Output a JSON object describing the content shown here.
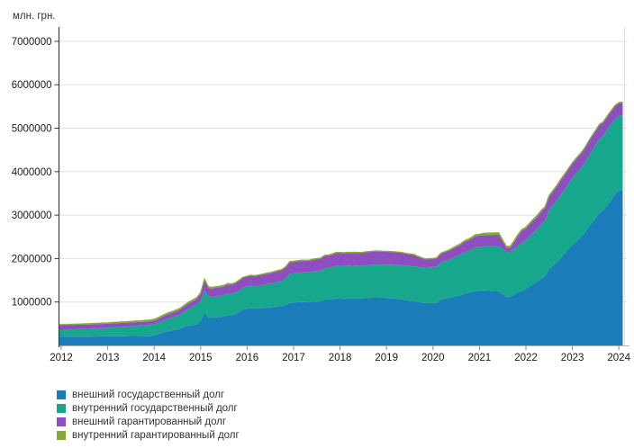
{
  "unit_label": "млн. грн.",
  "colors": {
    "ext_state": "#1b7cba",
    "int_state": "#17a78d",
    "ext_guaranteed": "#8f4ec0",
    "int_guaranteed": "#84ab35",
    "grid": "#e2e2e2",
    "y_axis": "#3c3c3c",
    "x_axis": "#b4b4b4",
    "tick_text": "#1c1c1c",
    "legend_text": "#333333"
  },
  "legend": {
    "items": [
      {
        "label": "внешний государственный долг",
        "color_key": "ext_state"
      },
      {
        "label": "внутренний государственный долг",
        "color_key": "int_state"
      },
      {
        "label": "внешний гарантированный долг",
        "color_key": "ext_guaranteed"
      },
      {
        "label": "внутренний гарантированный долг",
        "color_key": "int_guaranteed"
      }
    ]
  },
  "chart_data": {
    "type": "area",
    "stacked": true,
    "title": "",
    "ylabel": "млн. грн.",
    "grid": "horizontal",
    "legend_position": "bottom-left",
    "ylim": [
      0,
      7400000
    ],
    "y_ticks": [
      1000000,
      2000000,
      3000000,
      4000000,
      5000000,
      6000000,
      7000000
    ],
    "x_ticks": [
      "2012",
      "2013",
      "2014",
      "2015",
      "2016",
      "2017",
      "2018",
      "2019",
      "2020",
      "2021",
      "2022",
      "2023",
      "2024"
    ],
    "x_start_year": 2012,
    "points_per_year": 12,
    "series": [
      {
        "name": "внешний государственный долг",
        "color_key": "ext_state",
        "values": [
          197500,
          198000,
          198800,
          199500,
          200300,
          201000,
          202000,
          203000,
          204000,
          205500,
          207000,
          208926,
          209800,
          210800,
          211900,
          213000,
          214100,
          215200,
          216400,
          217600,
          218800,
          220100,
          221600,
          223260,
          235000,
          262000,
          292000,
          318000,
          338000,
          352000,
          368000,
          398000,
          438000,
          455000,
          470000,
          486027,
          560000,
          763000,
          642000,
          636000,
          648000,
          655000,
          668000,
          700000,
          692000,
          718000,
          768000,
          826270,
          842000,
          858000,
          846000,
          854000,
          863000,
          869000,
          874000,
          888000,
          898000,
          904000,
          933000,
          980186,
          986000,
          994000,
          999000,
          995000,
          991000,
          1004000,
          1009000,
          1014000,
          1058000,
          1054000,
          1064000,
          1080310,
          1076000,
          1071000,
          1079000,
          1077000,
          1084000,
          1081000,
          1087000,
          1099000,
          1104000,
          1109000,
          1104000,
          1099365,
          1094000,
          1085000,
          1079000,
          1069000,
          1059000,
          1040000,
          1029000,
          1019000,
          1009000,
          989000,
          966000,
          974962,
          971000,
          984000,
          1058000,
          1079000,
          1089000,
          1109000,
          1129000,
          1149000,
          1189000,
          1209000,
          1229000,
          1258560,
          1261000,
          1269000,
          1264000,
          1259000,
          1254000,
          1249000,
          1180000,
          1110000,
          1120000,
          1180000,
          1225000,
          1251400,
          1300000,
          1370000,
          1420000,
          1470000,
          1540000,
          1590000,
          1760000,
          1840000,
          1915000,
          2010000,
          2110000,
          2236600,
          2300000,
          2390000,
          2475000,
          2570000,
          2700000,
          2820000,
          2930000,
          3050000,
          3110000,
          3230000,
          3340000,
          3492000,
          3550000,
          3570000
        ]
      },
      {
        "name": "внутренний государственный долг",
        "color_key": "int_state",
        "values": [
          164000,
          166500,
          169000,
          171500,
          174000,
          176500,
          178500,
          180500,
          182500,
          185000,
          187600,
          190299,
          195500,
          200500,
          205500,
          210500,
          215500,
          220500,
          226200,
          231800,
          237500,
          243700,
          250200,
          256960,
          258500,
          261000,
          266000,
          277000,
          289000,
          301000,
          315000,
          333000,
          354000,
          398000,
          428000,
          461004,
          470000,
          500000,
          484000,
          481000,
          484000,
          487000,
          491000,
          494000,
          497000,
          500000,
          503500,
          508001,
          510500,
          512500,
          515500,
          521000,
          529000,
          540000,
          548000,
          556000,
          566000,
          580000,
          612000,
          670646,
          673000,
          676500,
          680500,
          685000,
          690000,
          699500,
          705000,
          711500,
          720500,
          728500,
          740000,
          753399,
          755500,
          756500,
          758000,
          756000,
          754000,
          752000,
          750500,
          748500,
          750000,
          752000,
          756500,
          761090,
          765500,
          770500,
          776000,
          780500,
          785500,
          790500,
          795500,
          800500,
          806000,
          812000,
          818500,
          829482,
          832500,
          836500,
          849000,
          859500,
          874500,
          899000,
          919500,
          934500,
          949500,
          961500,
          979500,
          1000576,
          1004000,
          1011000,
          1019000,
          1026000,
          1033000,
          1039000,
          1035000,
          1030000,
          1036000,
          1048000,
          1075000,
          1111300,
          1120000,
          1140000,
          1180000,
          1215000,
          1250000,
          1285000,
          1360000,
          1390000,
          1425000,
          1460000,
          1480000,
          1478100,
          1550000,
          1570000,
          1590000,
          1608000,
          1630000,
          1660000,
          1685000,
          1710000,
          1720000,
          1734000,
          1750000,
          1720600,
          1735000,
          1730000
        ]
      },
      {
        "name": "внешний гарантированный долг",
        "color_key": "ext_guaranteed",
        "values": [
          103000,
          102500,
          102000,
          101500,
          101000,
          100500,
          100000,
          99500,
          99000,
          98600,
          98100,
          97709,
          96200,
          94700,
          93200,
          91700,
          90200,
          88700,
          87000,
          85300,
          83500,
          81500,
          79300,
          76762,
          80000,
          88500,
          97500,
          104000,
          108000,
          110500,
          112500,
          115500,
          119000,
          121000,
          123500,
          125937,
          152000,
          230000,
          196000,
          193000,
          196500,
          198500,
          202500,
          211500,
          209500,
          214500,
          221500,
          226289,
          229500,
          233500,
          230800,
          232800,
          235300,
          237300,
          238800,
          242000,
          244500,
          246000,
          251500,
          259843,
          261300,
          263000,
          264000,
          263200,
          262300,
          265200,
          266500,
          267800,
          280000,
          282500,
          288000,
          294685,
          293500,
          292200,
          294200,
          293700,
          295500,
          294700,
          296200,
          299200,
          300500,
          301500,
          299800,
          297810,
          295800,
          293200,
          291000,
          288000,
          284200,
          277500,
          272300,
          268000,
          232000,
          211000,
          196000,
          185656,
          184300,
          187000,
          200500,
          205500,
          208500,
          212500,
          218500,
          224500,
          235500,
          242500,
          250500,
          259525,
          260500,
          262500,
          261500,
          260500,
          259500,
          258500,
          170000,
          100000,
          95000,
          160000,
          230000,
          281200,
          272000,
          282000,
          283000,
          286000,
          293000,
          293000,
          302000,
          308000,
          319000,
          328000,
          331000,
          334500,
          328000,
          328000,
          324000,
          321000,
          319000,
          320000,
          315000,
          310000,
          301000,
          297000,
          291000,
          288400,
          286000,
          282000
        ]
      },
      {
        "name": "внутренний гарантированный долг",
        "color_key": "int_guaranteed",
        "values": [
          12500,
          13000,
          13600,
          14100,
          14700,
          15200,
          15800,
          16300,
          16900,
          17400,
          17900,
          18428,
          19100,
          19800,
          20500,
          21200,
          21900,
          22600,
          23300,
          24000,
          24700,
          25500,
          26300,
          27129,
          27200,
          27300,
          27400,
          27500,
          27600,
          27650,
          27700,
          27750,
          27800,
          27820,
          27840,
          27864,
          28000,
          29000,
          26000,
          25000,
          24000,
          23000,
          21500,
          19500,
          17500,
          15500,
          13500,
          11817,
          12200,
          12700,
          13200,
          13700,
          14200,
          14800,
          15300,
          15900,
          16500,
          17200,
          18100,
          19084,
          18600,
          18100,
          17600,
          17100,
          16600,
          16100,
          15600,
          15100,
          14600,
          14200,
          13700,
          13280,
          13000,
          12800,
          12600,
          12400,
          12200,
          12000,
          11700,
          11400,
          11100,
          10800,
          10550,
          10320,
          10200,
          10100,
          10000,
          9900,
          9750,
          9600,
          9450,
          9300,
          9150,
          9000,
          8800,
          8453,
          9200,
          10200,
          12200,
          14200,
          16200,
          18200,
          20400,
          22600,
          25200,
          27400,
          30200,
          32963,
          34500,
          36500,
          38500,
          40500,
          42500,
          44000,
          40000,
          35000,
          32000,
          30000,
          29000,
          27900,
          28000,
          28000,
          28000,
          28000,
          28000,
          28000,
          28000,
          27000,
          26000,
          25000,
          24000,
          22500,
          22000,
          22000,
          21000,
          21000,
          21000,
          20000,
          20000,
          20000,
          19000,
          19000,
          19000,
          18500,
          18000,
          18000
        ]
      }
    ]
  }
}
